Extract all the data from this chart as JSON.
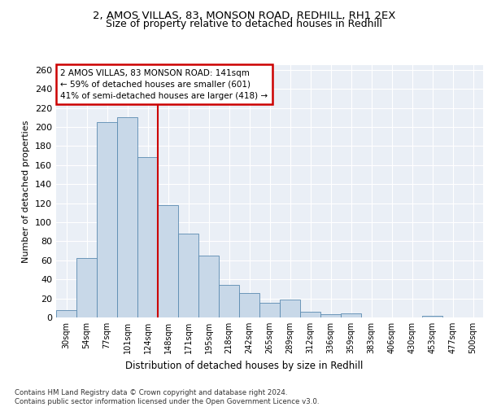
{
  "title_line1": "2, AMOS VILLAS, 83, MONSON ROAD, REDHILL, RH1 2EX",
  "title_line2": "Size of property relative to detached houses in Redhill",
  "xlabel": "Distribution of detached houses by size in Redhill",
  "ylabel": "Number of detached properties",
  "bar_labels": [
    "30sqm",
    "54sqm",
    "77sqm",
    "101sqm",
    "124sqm",
    "148sqm",
    "171sqm",
    "195sqm",
    "218sqm",
    "242sqm",
    "265sqm",
    "289sqm",
    "312sqm",
    "336sqm",
    "359sqm",
    "383sqm",
    "406sqm",
    "430sqm",
    "453sqm",
    "477sqm",
    "500sqm"
  ],
  "bar_values": [
    8,
    62,
    205,
    210,
    168,
    118,
    88,
    65,
    34,
    26,
    15,
    19,
    6,
    3,
    4,
    0,
    0,
    0,
    2,
    0,
    0
  ],
  "bar_color_normal": "#c8d8e8",
  "bar_color_highlight": "#a0b8d0",
  "bar_edge_color": "#5a8ab0",
  "highlight_indices": [
    2,
    3,
    4
  ],
  "annotation_text": "2 AMOS VILLAS, 83 MONSON ROAD: 141sqm\n← 59% of detached houses are smaller (601)\n41% of semi-detached houses are larger (418) →",
  "vline_x": 4.5,
  "ylim": [
    0,
    265
  ],
  "yticks": [
    0,
    20,
    40,
    60,
    80,
    100,
    120,
    140,
    160,
    180,
    200,
    220,
    240,
    260
  ],
  "background_color": "#eaeff6",
  "grid_color": "#ffffff",
  "footnote": "Contains HM Land Registry data © Crown copyright and database right 2024.\nContains public sector information licensed under the Open Government Licence v3.0."
}
